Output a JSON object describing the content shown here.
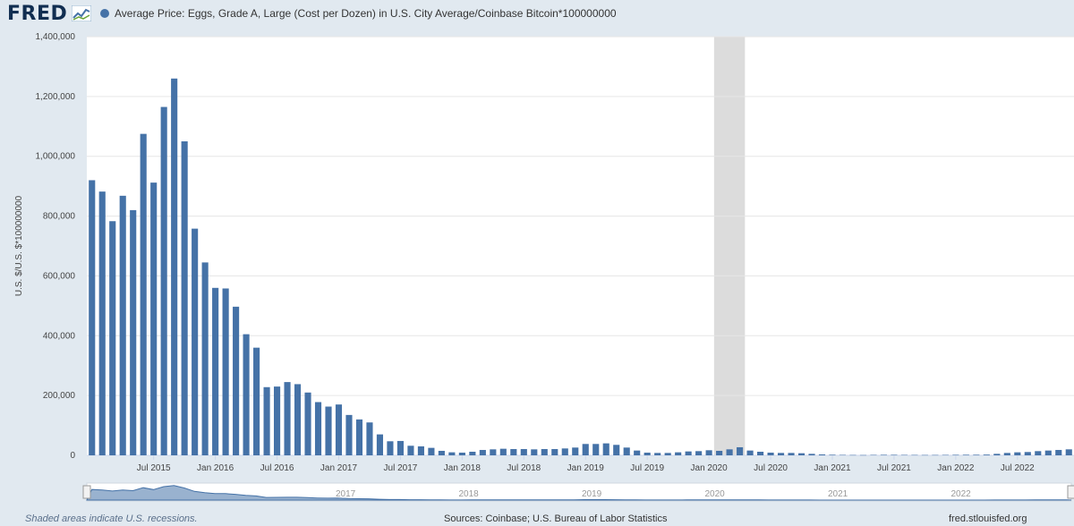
{
  "header": {
    "logo_text": "FRED",
    "legend_label": "Average Price: Eggs, Grade A, Large (Cost per Dozen) in U.S. City Average/Coinbase Bitcoin*100000000"
  },
  "footer": {
    "recessions_note": "Shaded areas indicate U.S. recessions.",
    "sources": "Sources: Coinbase; U.S. Bureau of Labor Statistics",
    "site": "fred.stlouisfed.org"
  },
  "colors": {
    "bar": "#4572a7",
    "recession": "#dcdcdc",
    "navigator_area": "#4572a7"
  },
  "navigator": {
    "year_labels": [
      "2017",
      "2018",
      "2019",
      "2020",
      "2021",
      "2022"
    ]
  },
  "chart_data": {
    "type": "bar",
    "title": "",
    "ylabel": "U.S. $/U.S. $*100000000",
    "ylim": [
      0,
      1400000
    ],
    "yticks": [
      0,
      200000,
      400000,
      600000,
      800000,
      1000000,
      1200000,
      1400000
    ],
    "ytick_labels": [
      "0",
      "200,000",
      "400,000",
      "600,000",
      "800,000",
      "1,000,000",
      "1,200,000",
      "1,400,000"
    ],
    "xtick_labels": [
      {
        "label": "Jul 2015",
        "month_index": 6
      },
      {
        "label": "Jan 2016",
        "month_index": 12
      },
      {
        "label": "Jul 2016",
        "month_index": 18
      },
      {
        "label": "Jan 2017",
        "month_index": 24
      },
      {
        "label": "Jul 2017",
        "month_index": 30
      },
      {
        "label": "Jan 2018",
        "month_index": 36
      },
      {
        "label": "Jul 2018",
        "month_index": 42
      },
      {
        "label": "Jan 2019",
        "month_index": 48
      },
      {
        "label": "Jul 2019",
        "month_index": 54
      },
      {
        "label": "Jan 2020",
        "month_index": 60
      },
      {
        "label": "Jul 2020",
        "month_index": 66
      },
      {
        "label": "Jan 2021",
        "month_index": 72
      },
      {
        "label": "Jul 2021",
        "month_index": 78
      },
      {
        "label": "Jan 2022",
        "month_index": 84
      },
      {
        "label": "Jul 2022",
        "month_index": 90
      }
    ],
    "recession": {
      "start": "2020-02",
      "end": "2020-04"
    },
    "x": [
      "2015-01",
      "2015-02",
      "2015-03",
      "2015-04",
      "2015-05",
      "2015-06",
      "2015-07",
      "2015-08",
      "2015-09",
      "2015-10",
      "2015-11",
      "2015-12",
      "2016-01",
      "2016-02",
      "2016-03",
      "2016-04",
      "2016-05",
      "2016-06",
      "2016-07",
      "2016-08",
      "2016-09",
      "2016-10",
      "2016-11",
      "2016-12",
      "2017-01",
      "2017-02",
      "2017-03",
      "2017-04",
      "2017-05",
      "2017-06",
      "2017-07",
      "2017-08",
      "2017-09",
      "2017-10",
      "2017-11",
      "2017-12",
      "2018-01",
      "2018-02",
      "2018-03",
      "2018-04",
      "2018-05",
      "2018-06",
      "2018-07",
      "2018-08",
      "2018-09",
      "2018-10",
      "2018-11",
      "2018-12",
      "2019-01",
      "2019-02",
      "2019-03",
      "2019-04",
      "2019-05",
      "2019-06",
      "2019-07",
      "2019-08",
      "2019-09",
      "2019-10",
      "2019-11",
      "2019-12",
      "2020-01",
      "2020-02",
      "2020-03",
      "2020-04",
      "2020-05",
      "2020-06",
      "2020-07",
      "2020-08",
      "2020-09",
      "2020-10",
      "2020-11",
      "2020-12",
      "2021-01",
      "2021-02",
      "2021-03",
      "2021-04",
      "2021-05",
      "2021-06",
      "2021-07",
      "2021-08",
      "2021-09",
      "2021-10",
      "2021-11",
      "2021-12",
      "2022-01",
      "2022-02",
      "2022-03",
      "2022-04",
      "2022-05",
      "2022-06",
      "2022-07",
      "2022-08",
      "2022-09",
      "2022-10",
      "2022-11",
      "2022-12"
    ],
    "values": [
      920000,
      882000,
      783000,
      868000,
      820000,
      1075000,
      912000,
      1165000,
      1260000,
      1050000,
      758000,
      645000,
      560000,
      558000,
      497000,
      405000,
      360000,
      228000,
      230000,
      245000,
      238000,
      210000,
      178000,
      163000,
      170000,
      135000,
      120000,
      110000,
      70000,
      47000,
      48000,
      32000,
      30000,
      25000,
      15000,
      10000,
      9000,
      12000,
      18000,
      20000,
      22000,
      21000,
      21000,
      20000,
      21000,
      21000,
      23000,
      26000,
      38000,
      38000,
      40000,
      35000,
      26000,
      16000,
      9000,
      8000,
      8000,
      10000,
      13000,
      14000,
      17000,
      15000,
      20000,
      27000,
      16000,
      12000,
      9000,
      8000,
      8000,
      7000,
      5000,
      3000,
      2000,
      1500,
      1200,
      1000,
      1500,
      1800,
      1800,
      1500,
      1400,
      1200,
      1300,
      1500,
      1800,
      2000,
      2000,
      2500,
      5000,
      8000,
      10000,
      11000,
      14000,
      16000,
      18000,
      20000
    ]
  }
}
